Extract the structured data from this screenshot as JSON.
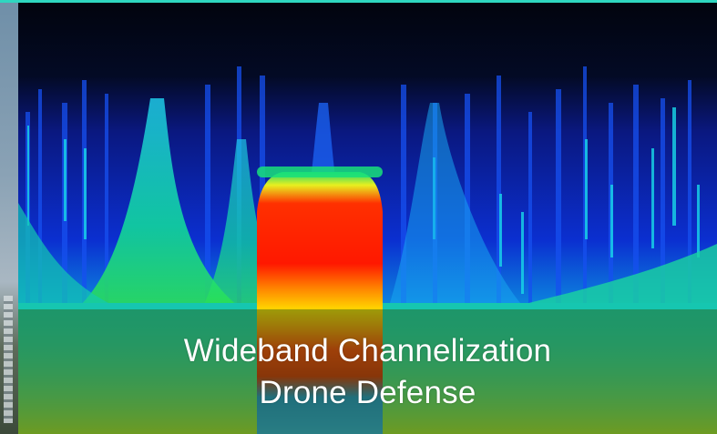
{
  "caption": {
    "line1": "Wideband Channelization",
    "line2": "Drone Defense"
  },
  "colors": {
    "background_top": "#020714",
    "spectrum_low": "#0a1a9a",
    "spectrum_mid": "#19e3c4",
    "spectrum_high": "#ff1a00",
    "caption_overlay": "#285a14"
  }
}
